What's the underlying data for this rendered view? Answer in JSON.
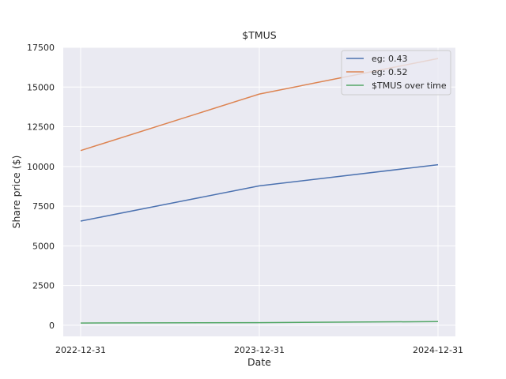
{
  "chart_data": {
    "type": "line",
    "title": "$TMUS",
    "xlabel": "Date",
    "ylabel": "Share price ($)",
    "x": [
      "2022-12-31",
      "2023-12-31",
      "2024-12-31"
    ],
    "ylim": [
      -700,
      17500
    ],
    "yticks": [
      0,
      2500,
      5000,
      7500,
      10000,
      12500,
      15000,
      17500
    ],
    "grid": true,
    "legend_position": "top-right",
    "series": [
      {
        "name": "eg: 0.43",
        "color": "#4c72b0",
        "values": [
          6560,
          8780,
          10110
        ]
      },
      {
        "name": "eg: 0.52",
        "color": "#dd8452",
        "values": [
          11000,
          14560,
          16800
        ]
      },
      {
        "name": "$TMUS over time",
        "color": "#55a868",
        "values": [
          140,
          165,
          230
        ]
      }
    ]
  }
}
